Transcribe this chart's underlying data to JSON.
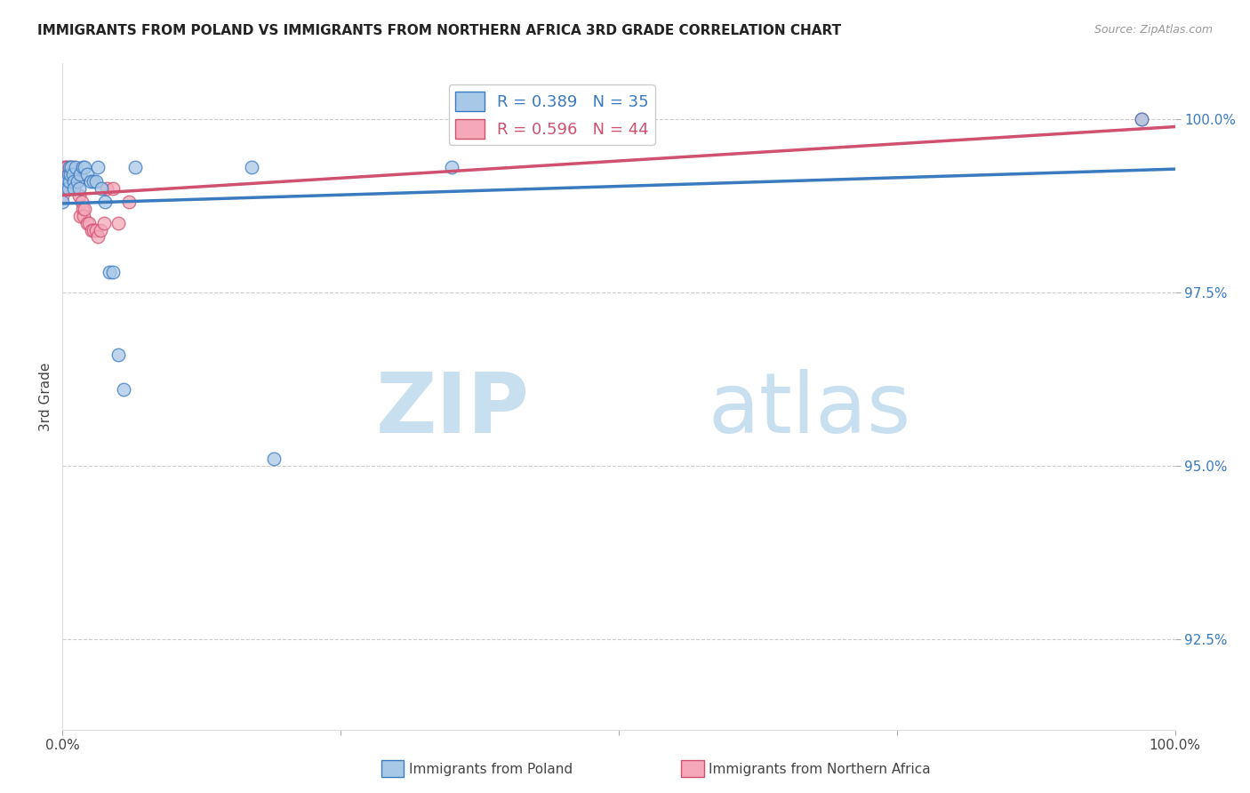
{
  "title": "IMMIGRANTS FROM POLAND VS IMMIGRANTS FROM NORTHERN AFRICA 3RD GRADE CORRELATION CHART",
  "source": "Source: ZipAtlas.com",
  "ylabel": "3rd Grade",
  "ylabel_right_ticks": [
    "100.0%",
    "97.5%",
    "95.0%",
    "92.5%"
  ],
  "ylabel_right_vals": [
    1.0,
    0.975,
    0.95,
    0.925
  ],
  "xlim": [
    0.0,
    1.0
  ],
  "ylim": [
    0.912,
    1.008
  ],
  "color_poland": "#a8c8e8",
  "color_africa": "#f4a8b8",
  "line_color_poland": "#3a7abf",
  "line_color_africa": "#d05070",
  "watermark_zip": "ZIP",
  "watermark_atlas": "atlas",
  "poland_x": [
    0.0,
    0.002,
    0.003,
    0.004,
    0.005,
    0.005,
    0.006,
    0.006,
    0.007,
    0.008,
    0.009,
    0.01,
    0.01,
    0.012,
    0.013,
    0.015,
    0.016,
    0.018,
    0.02,
    0.022,
    0.025,
    0.028,
    0.03,
    0.032,
    0.035,
    0.038,
    0.042,
    0.045,
    0.05,
    0.055,
    0.065,
    0.17,
    0.19,
    0.35,
    0.97
  ],
  "poland_y": [
    0.988,
    0.991,
    0.991,
    0.99,
    0.992,
    0.99,
    0.993,
    0.991,
    0.992,
    0.993,
    0.992,
    0.991,
    0.99,
    0.993,
    0.991,
    0.99,
    0.992,
    0.993,
    0.993,
    0.992,
    0.991,
    0.991,
    0.991,
    0.993,
    0.99,
    0.988,
    0.978,
    0.978,
    0.966,
    0.961,
    0.993,
    0.993,
    0.951,
    0.993,
    1.0
  ],
  "africa_x": [
    0.0,
    0.0,
    0.0,
    0.001,
    0.001,
    0.002,
    0.002,
    0.003,
    0.003,
    0.004,
    0.004,
    0.005,
    0.005,
    0.005,
    0.006,
    0.006,
    0.007,
    0.007,
    0.008,
    0.009,
    0.009,
    0.01,
    0.01,
    0.012,
    0.013,
    0.015,
    0.016,
    0.017,
    0.018,
    0.019,
    0.02,
    0.022,
    0.024,
    0.026,
    0.028,
    0.03,
    0.032,
    0.034,
    0.037,
    0.04,
    0.045,
    0.05,
    0.06,
    0.97
  ],
  "africa_y": [
    0.991,
    0.99,
    0.989,
    0.993,
    0.992,
    0.992,
    0.99,
    0.993,
    0.991,
    0.993,
    0.991,
    0.992,
    0.991,
    0.99,
    0.991,
    0.99,
    0.993,
    0.991,
    0.992,
    0.991,
    0.99,
    0.993,
    0.991,
    0.992,
    0.991,
    0.989,
    0.986,
    0.988,
    0.987,
    0.986,
    0.987,
    0.985,
    0.985,
    0.984,
    0.984,
    0.984,
    0.983,
    0.984,
    0.985,
    0.99,
    0.99,
    0.985,
    0.988,
    1.0
  ]
}
